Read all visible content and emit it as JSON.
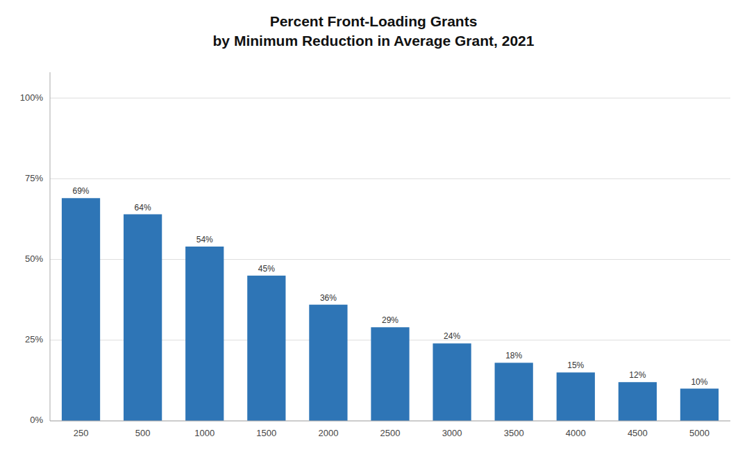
{
  "chart_data": {
    "type": "bar",
    "title": "Percent Front-Loading Grants",
    "subtitle": "by Minimum Reduction in Average Grant, 2021",
    "categories": [
      "250",
      "500",
      "1000",
      "1500",
      "2000",
      "2500",
      "3000",
      "3500",
      "4000",
      "4500",
      "5000"
    ],
    "values": [
      0.69,
      0.64,
      0.54,
      0.45,
      0.36,
      0.29,
      0.24,
      0.18,
      0.15,
      0.12,
      0.1
    ],
    "value_labels": [
      "69%",
      "64%",
      "54%",
      "45%",
      "36%",
      "29%",
      "24%",
      "18%",
      "15%",
      "12%",
      "10%"
    ],
    "data_labels": true,
    "color": "#2E75B6",
    "ylim": [
      0,
      1.08
    ],
    "yticks": [
      {
        "value": 0.0,
        "label": "0%"
      },
      {
        "value": 0.25,
        "label": "25%"
      },
      {
        "value": 0.5,
        "label": "50%"
      },
      {
        "value": 0.75,
        "label": "75%"
      },
      {
        "value": 1.0,
        "label": "100%"
      }
    ],
    "grid": true
  }
}
